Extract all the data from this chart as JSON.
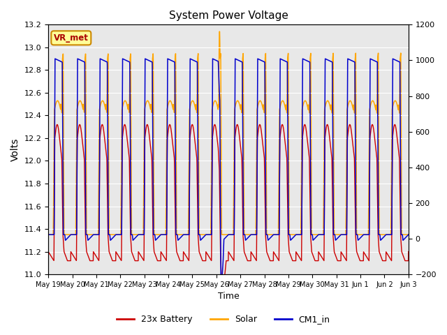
{
  "title": "System Power Voltage",
  "xlabel": "Time",
  "ylabel": "Volts",
  "ylim_left": [
    11.0,
    13.2
  ],
  "ylim_right": [
    -200,
    1200
  ],
  "yticks_left": [
    11.0,
    11.2,
    11.4,
    11.6,
    11.8,
    12.0,
    12.2,
    12.4,
    12.6,
    12.8,
    13.0,
    13.2
  ],
  "yticks_right": [
    -200,
    0,
    200,
    400,
    600,
    800,
    1000,
    1200
  ],
  "xtick_labels": [
    "May 19",
    "May 20",
    "May 21",
    "May 22",
    "May 23",
    "May 24",
    "May 25",
    "May 26",
    "May 27",
    "May 28",
    "May 29",
    "May 30",
    "May 31",
    "Jun 1",
    "Jun 2",
    "Jun 3"
  ],
  "color_battery": "#cc0000",
  "color_solar": "#ffa500",
  "color_cm1": "#0000cc",
  "annotation_text": "VR_met",
  "annotation_color": "#aa0000",
  "annotation_bg": "#ffff99",
  "annotation_border": "#cc8800",
  "bg_plot": "#e8e8e8",
  "bg_fig": "#ffffff",
  "legend_labels": [
    "23x Battery",
    "Solar",
    "CM1_in"
  ],
  "days": 16
}
